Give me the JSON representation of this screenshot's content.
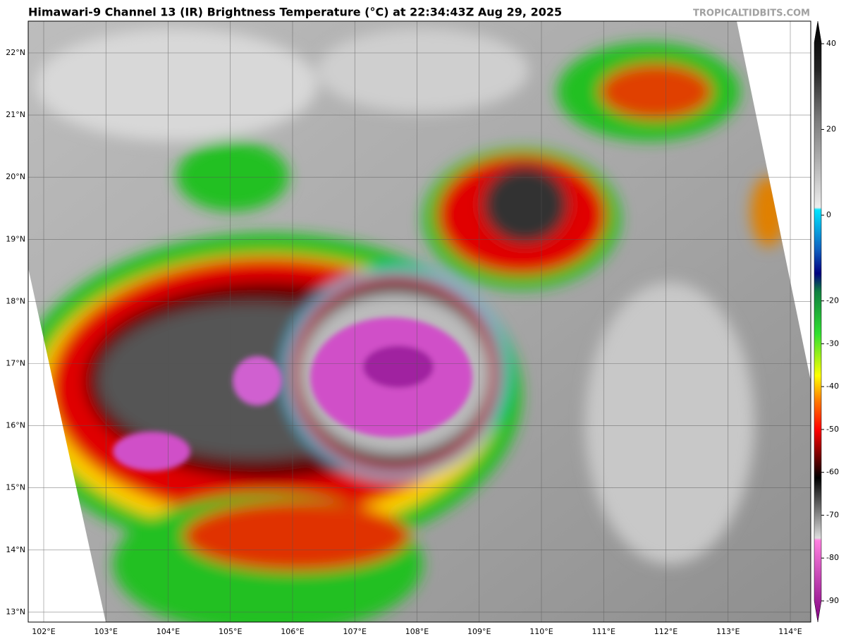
{
  "header": {
    "title": "Himawari-9 Channel 13 (IR) Brightness Temperature (°C) at 22:34:43Z Aug 29, 2025",
    "credit": "TROPICALTIDBITS.COM"
  },
  "map": {
    "lon_labels": [
      "102°E",
      "103°E",
      "104°E",
      "105°E",
      "106°E",
      "107°E",
      "108°E",
      "109°E",
      "110°E",
      "111°E",
      "112°E",
      "113°E",
      "114°E"
    ],
    "lat_labels": [
      "22°N",
      "21°N",
      "20°N",
      "19°N",
      "18°N",
      "17°N",
      "16°N",
      "15°N",
      "14°N",
      "13°N"
    ]
  },
  "colorbar": {
    "ticks": [
      40,
      20,
      0,
      -20,
      -30,
      -40,
      -50,
      -60,
      -70,
      -80,
      -90
    ]
  }
}
